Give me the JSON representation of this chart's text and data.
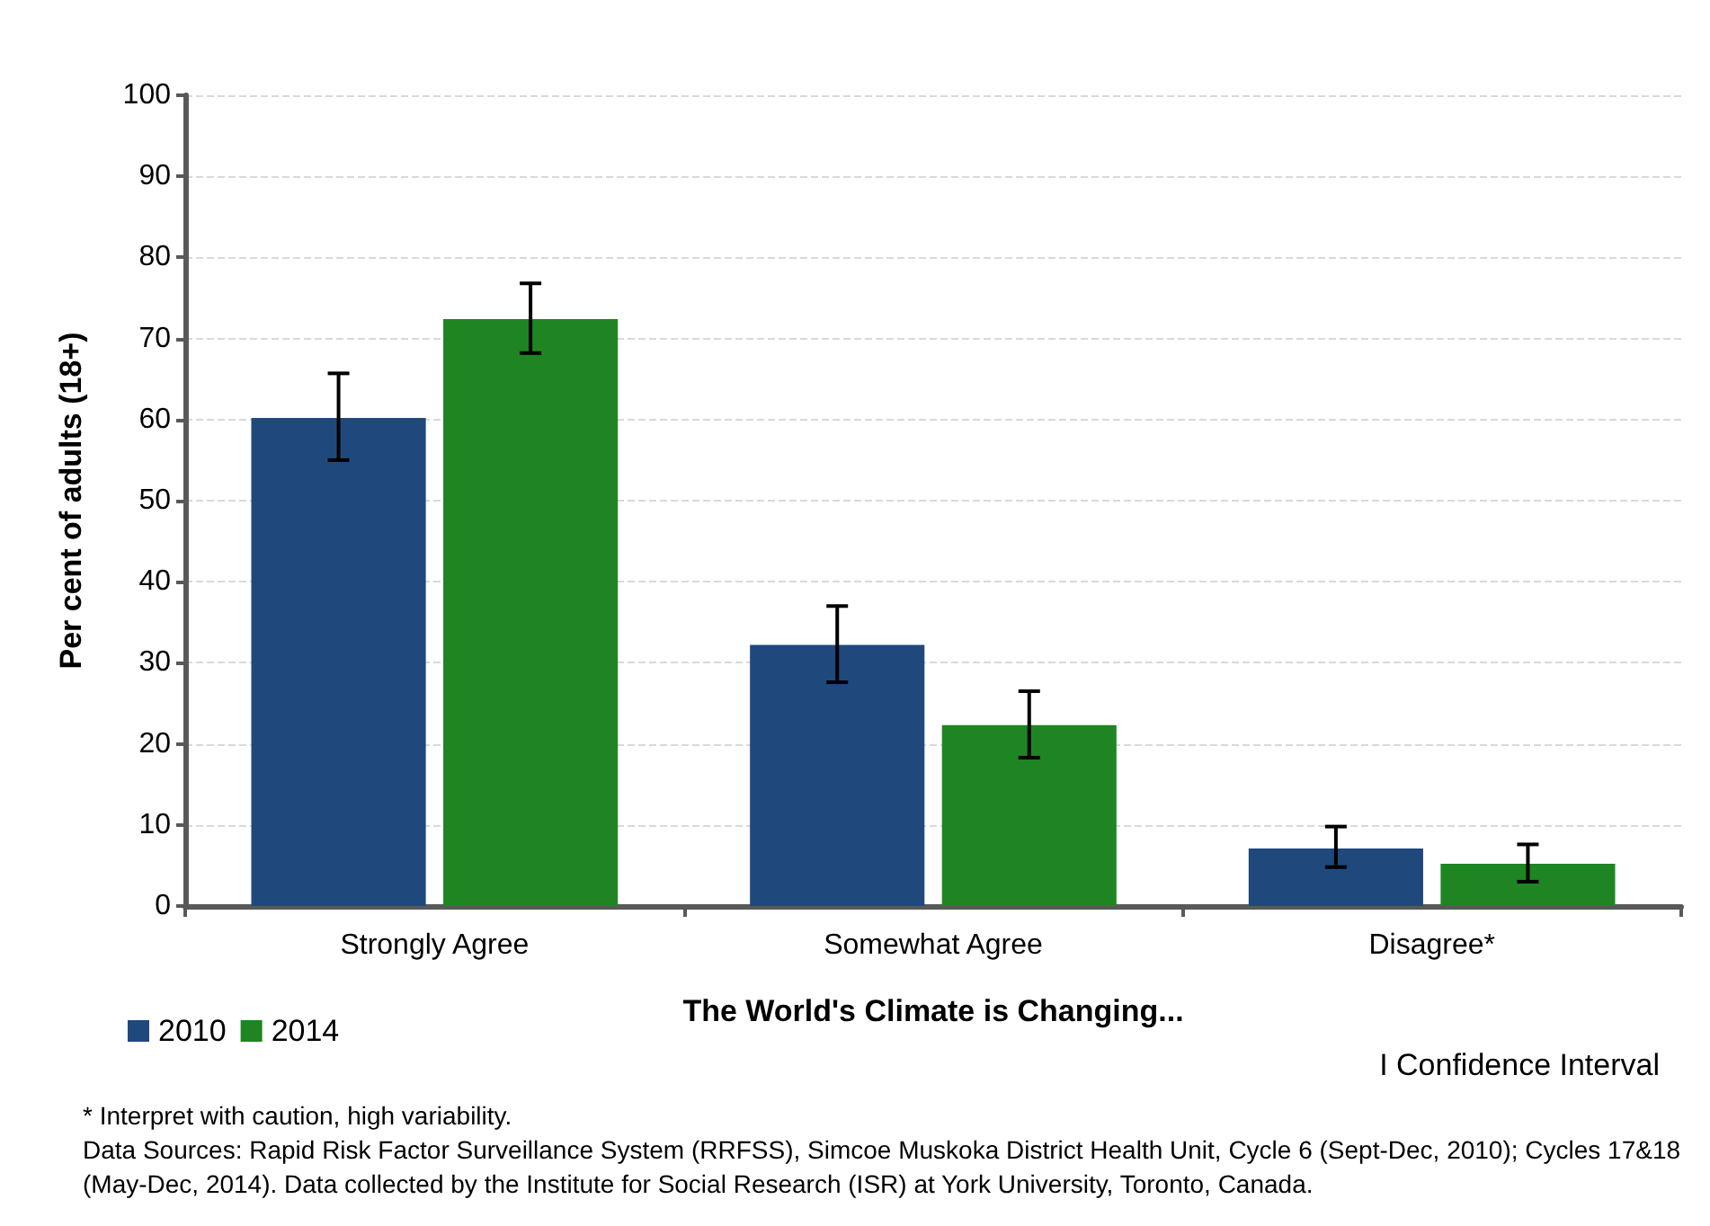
{
  "chart_data": {
    "type": "bar",
    "xlabel": "The World's Climate is Changing...",
    "ylabel": "Per cent of adults (18+)",
    "categories": [
      "Strongly Agree",
      "Somewhat Agree",
      "Disagree*"
    ],
    "series": [
      {
        "name": "2010",
        "color": "#1f497d",
        "values": [
          60.2,
          32.2,
          7.1
        ],
        "errors": [
          [
            55.0,
            65.7
          ],
          [
            27.6,
            37.0
          ],
          [
            4.8,
            9.8
          ]
        ]
      },
      {
        "name": "2014",
        "color": "#1e8522",
        "values": [
          72.4,
          22.3,
          5.2
        ],
        "errors": [
          [
            68.2,
            76.8
          ],
          [
            18.3,
            26.5
          ],
          [
            3.0,
            7.6
          ]
        ]
      }
    ],
    "ylim": [
      0,
      100
    ],
    "yticks": [
      0,
      10,
      20,
      30,
      40,
      50,
      60,
      70,
      80,
      90,
      100
    ],
    "grid": "y",
    "legend": "bottom left",
    "annotations": [
      "I Confidence Interval",
      "* Interpret with caution, high variability.",
      "Data Sources: Rapid Risk Factor Surveillance System (RRFSS), Simcoe Muskoka District Health Unit, Cycle 6 (Sept-Dec, 2010); Cycles 17&18 (May-Dec, 2014). Data collected by the Institute for Social Research (ISR) at York University, Toronto, Canada."
    ]
  }
}
